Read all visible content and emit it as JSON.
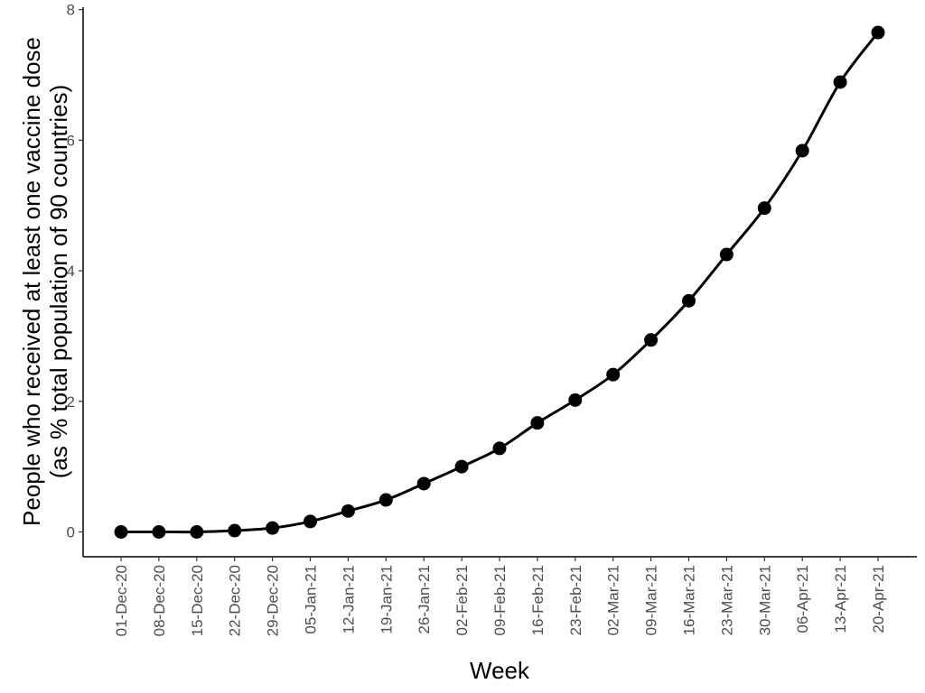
{
  "chart_data": {
    "type": "line",
    "xlabel": "Week",
    "ylabel_line1": "People who received at least one vaccine dose",
    "ylabel_line2": "(as % total population of 90 countries)",
    "ylim": [
      0,
      8
    ],
    "yticks": [
      0,
      2,
      4,
      6,
      8
    ],
    "grid": false,
    "categories": [
      "01-Dec-20",
      "08-Dec-20",
      "15-Dec-20",
      "22-Dec-20",
      "29-Dec-20",
      "05-Jan-21",
      "12-Jan-21",
      "19-Jan-21",
      "26-Jan-21",
      "02-Feb-21",
      "09-Feb-21",
      "16-Feb-21",
      "23-Feb-21",
      "02-Mar-21",
      "09-Mar-21",
      "16-Mar-21",
      "23-Mar-21",
      "30-Mar-21",
      "06-Apr-21",
      "13-Apr-21",
      "20-Apr-21"
    ],
    "series": [
      {
        "values": [
          0.0,
          0.0,
          0.0,
          0.02,
          0.06,
          0.16,
          0.32,
          0.49,
          0.74,
          1.0,
          1.28,
          1.67,
          2.02,
          2.41,
          2.94,
          3.54,
          4.25,
          4.96,
          5.84,
          6.89,
          7.65
        ],
        "color": "#000000"
      }
    ]
  }
}
